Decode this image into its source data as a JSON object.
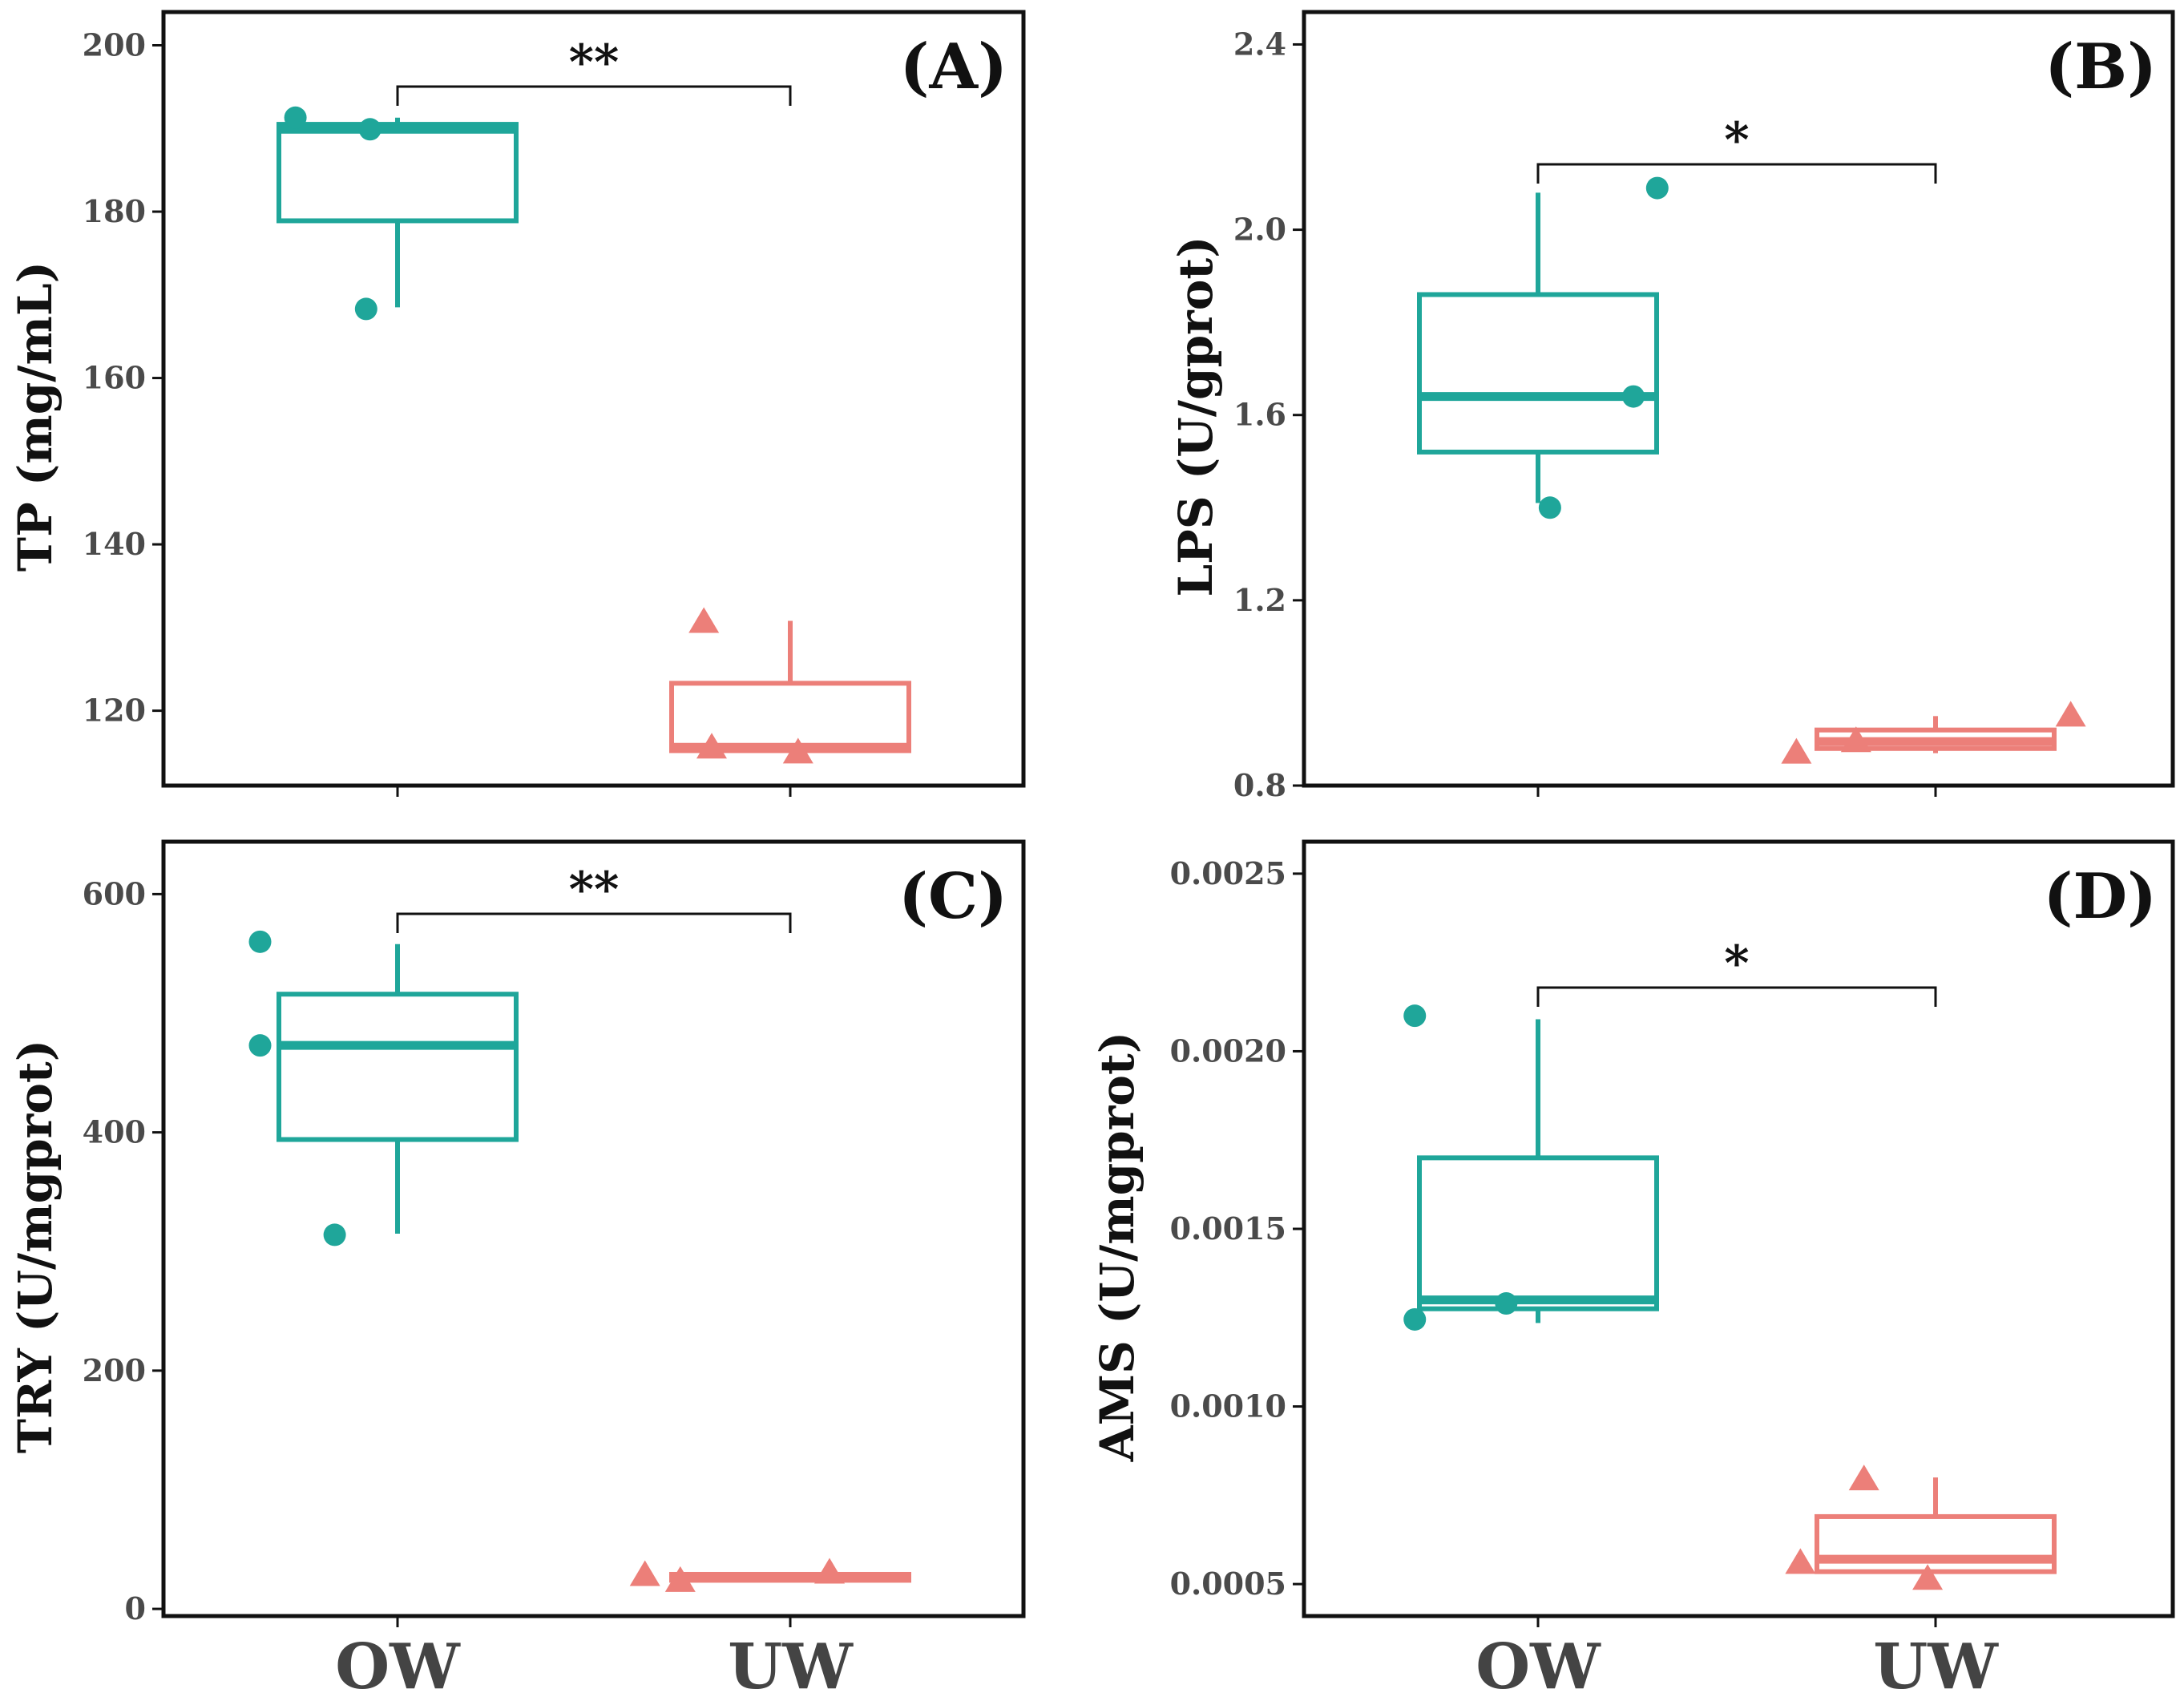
{
  "colors": {
    "OW": "#1FA69A",
    "UW": "#EC7F79",
    "frame": "#111111",
    "tick_text": "#4a4a4a"
  },
  "chart_data": [
    {
      "type": "box",
      "panel": "(A)",
      "ylabel": "TP (mg/mL)",
      "categories": [
        "OW",
        "UW"
      ],
      "ylim": [
        111,
        204
      ],
      "yticks": [
        120,
        140,
        160,
        180,
        200
      ],
      "tick_labels": [
        "120",
        "140",
        "160",
        "180",
        "200"
      ],
      "significance": "**",
      "series": [
        {
          "name": "OW",
          "marker": "circle",
          "box": {
            "q1": 178.9,
            "median": 189.9,
            "q3": 190.5,
            "whisker_low": 168.5,
            "whisker_high": 191.3
          },
          "points": [
            [
              -0.26,
              191.3
            ],
            [
              -0.07,
              189.9
            ],
            [
              -0.08,
              168.3
            ]
          ]
        },
        {
          "name": "UW",
          "marker": "triangle",
          "box": {
            "q1": 115.2,
            "median": 115.6,
            "q3": 123.3,
            "whisker_low": 115.2,
            "whisker_high": 130.8
          },
          "points": [
            [
              -0.22,
              130.9
            ],
            [
              -0.2,
              115.8
            ],
            [
              0.02,
              115.2
            ]
          ]
        }
      ]
    },
    {
      "type": "box",
      "panel": "(B)",
      "ylabel": "LPS (U/gprot)",
      "categories": [
        "OW",
        "UW"
      ],
      "ylim": [
        0.8,
        2.47
      ],
      "yticks": [
        0.8,
        1.2,
        1.6,
        2.0,
        2.4
      ],
      "tick_labels": [
        "0.8",
        "1.2",
        "1.6",
        "2.0",
        "2.4"
      ],
      "significance": "*",
      "series": [
        {
          "name": "OW",
          "marker": "circle",
          "box": {
            "q1": 1.52,
            "median": 1.64,
            "q3": 1.86,
            "whisker_low": 1.41,
            "whisker_high": 2.08
          },
          "points": [
            [
              0.3,
              2.09
            ],
            [
              0.24,
              1.64
            ],
            [
              0.03,
              1.4
            ]
          ]
        },
        {
          "name": "UW",
          "marker": "triangle",
          "box": {
            "q1": 0.88,
            "median": 0.895,
            "q3": 0.92,
            "whisker_low": 0.87,
            "whisker_high": 0.95
          },
          "points": [
            [
              -0.35,
              0.875
            ],
            [
              -0.2,
              0.9
            ],
            [
              0.34,
              0.955
            ]
          ]
        }
      ]
    },
    {
      "type": "box",
      "panel": "(C)",
      "ylabel": "TRY (U/mgprot)",
      "categories": [
        "OW",
        "UW"
      ],
      "ylim": [
        -6,
        644
      ],
      "yticks": [
        0,
        200,
        400,
        600
      ],
      "tick_labels": [
        "0",
        "200",
        "400",
        "600"
      ],
      "significance": "**",
      "series": [
        {
          "name": "OW",
          "marker": "circle",
          "box": {
            "q1": 394,
            "median": 473,
            "q3": 516,
            "whisker_low": 315,
            "whisker_high": 558
          },
          "points": [
            [
              -0.35,
              560
            ],
            [
              -0.35,
              473
            ],
            [
              -0.16,
              314
            ]
          ]
        },
        {
          "name": "UW",
          "marker": "triangle",
          "box": {
            "q1": 24,
            "median": 27,
            "q3": 29,
            "whisker_low": 23,
            "whisker_high": 31
          },
          "points": [
            [
              -0.37,
              30
            ],
            [
              -0.28,
              25
            ],
            [
              0.1,
              32
            ]
          ]
        }
      ]
    },
    {
      "type": "box",
      "panel": "(D)",
      "ylabel": "AMS (U/mgprot)",
      "categories": [
        "OW",
        "UW"
      ],
      "ylim": [
        0.00041,
        0.00259
      ],
      "yticks": [
        0.0005,
        0.001,
        0.0015,
        0.002,
        0.0025
      ],
      "tick_labels": [
        "0.0005",
        "0.0010",
        "0.0015",
        "0.0020",
        "0.0025"
      ],
      "significance": "*",
      "series": [
        {
          "name": "OW",
          "marker": "circle",
          "box": {
            "q1": 0.001275,
            "median": 0.0013,
            "q3": 0.0017,
            "whisker_low": 0.001235,
            "whisker_high": 0.00209
          },
          "points": [
            [
              -0.31,
              0.0021
            ],
            [
              -0.31,
              0.001245
            ],
            [
              -0.08,
              0.00129
            ]
          ]
        },
        {
          "name": "UW",
          "marker": "triangle",
          "box": {
            "q1": 0.000535,
            "median": 0.00057,
            "q3": 0.00069,
            "whisker_low": 0.00053,
            "whisker_high": 0.0008
          },
          "points": [
            [
              -0.18,
              0.0008
            ],
            [
              -0.34,
              0.000565
            ],
            [
              -0.02,
              0.00052
            ]
          ]
        }
      ]
    }
  ]
}
